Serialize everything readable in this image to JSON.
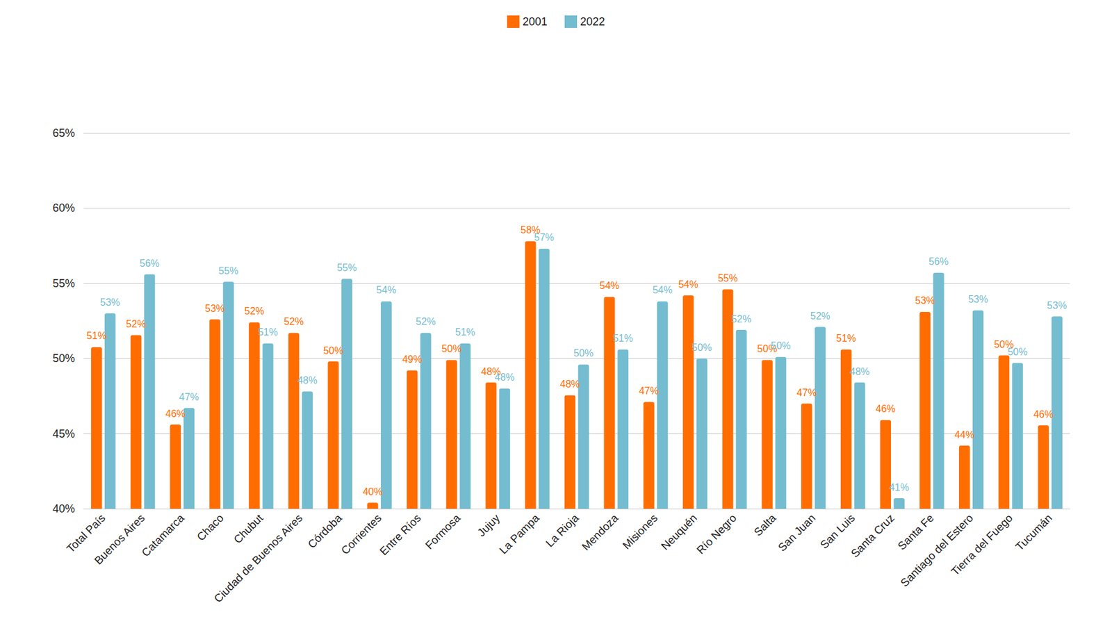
{
  "chart_data": {
    "type": "bar",
    "categories": [
      "Total País",
      "Buenos Aires",
      "Catamarca",
      "Chaco",
      "Chubut",
      "Ciudad de Buenos Aires",
      "Córdoba",
      "Corrientes",
      "Entre Ríos",
      "Formosa",
      "Jujuy",
      "La Pampa",
      "La Rioja",
      "Mendoza",
      "Misiones",
      "Neuquén",
      "Río Negro",
      "Salta",
      "San Juan",
      "San Luis",
      "Santa Cruz",
      "Santa Fe",
      "Santiago del Estero",
      "Tierra del Fuego",
      "Tucumán"
    ],
    "series": [
      {
        "name": "2001",
        "color": "#ff6d01",
        "values": [
          50.75,
          51.55,
          45.6,
          52.6,
          52.4,
          51.7,
          49.8,
          40.4,
          49.2,
          49.9,
          48.4,
          57.8,
          47.55,
          54.1,
          47.1,
          54.2,
          54.6,
          49.9,
          47.0,
          50.6,
          45.9,
          53.1,
          44.2,
          50.2,
          45.55
        ],
        "value_labels": [
          "51%",
          "52%",
          "46%",
          "53%",
          "52%",
          "52%",
          "50%",
          "40%",
          "49%",
          "50%",
          "48%",
          "58%",
          "48%",
          "54%",
          "47%",
          "54%",
          "55%",
          "50%",
          "47%",
          "51%",
          "46%",
          "53%",
          "44%",
          "50%",
          "46%"
        ]
      },
      {
        "name": "2022",
        "color": "#74bccf",
        "values": [
          53.0,
          55.6,
          46.7,
          55.1,
          51.0,
          47.8,
          55.3,
          53.8,
          51.7,
          51.0,
          48.0,
          57.3,
          49.6,
          50.6,
          53.8,
          50.0,
          51.9,
          50.1,
          52.1,
          48.4,
          40.7,
          55.7,
          53.2,
          49.7,
          52.8
        ],
        "value_labels": [
          "53%",
          "56%",
          "47%",
          "55%",
          "51%",
          "48%",
          "55%",
          "54%",
          "52%",
          "51%",
          "48%",
          "57%",
          "50%",
          "51%",
          "54%",
          "50%",
          "52%",
          "50%",
          "52%",
          "48%",
          "41%",
          "56%",
          "53%",
          "50%",
          "53%"
        ]
      }
    ],
    "ylim": [
      40,
      65
    ],
    "yticks": [
      {
        "value": 40,
        "label": "40%"
      },
      {
        "value": 45,
        "label": "45%"
      },
      {
        "value": 50,
        "label": "50%"
      },
      {
        "value": 55,
        "label": "55%"
      },
      {
        "value": 60,
        "label": "60%"
      },
      {
        "value": 65,
        "label": "65%"
      }
    ],
    "grid": true,
    "legend": "top",
    "data_labels": true
  }
}
